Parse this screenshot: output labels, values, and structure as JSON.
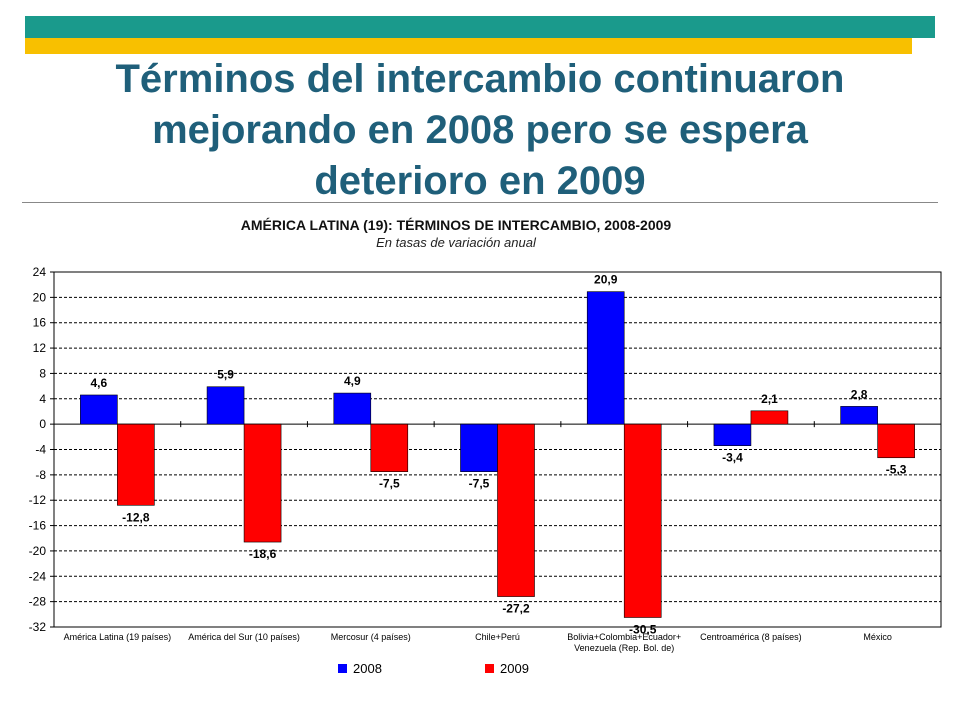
{
  "slide": {
    "title": "Términos del intercambio continuaron mejorando en 2008 pero se espera deterioro en 2009"
  },
  "chart_data": {
    "type": "bar",
    "title": "AMÉRICA LATINA (19): TÉRMINOS DE INTERCAMBIO, 2008-2009",
    "subtitle": "En tasas de variación anual",
    "categories": [
      [
        "América Latina (19 países)"
      ],
      [
        "América del Sur (10 países)"
      ],
      [
        "Mercosur (4 países)"
      ],
      [
        "Chile+Perú"
      ],
      [
        "Bolivia+Colombia+Ecuador+",
        "Venezuela (Rep. Bol. de)"
      ],
      [
        "Centroamérica (8 países)"
      ],
      [
        "México"
      ]
    ],
    "series": [
      {
        "name": "2008",
        "color": "#0000ff",
        "values": [
          4.6,
          5.9,
          4.9,
          -7.5,
          20.9,
          -3.4,
          2.8
        ],
        "labels": [
          "4,6",
          "5,9",
          "4,9",
          "-7,5",
          "20,9",
          "-3,4",
          "2,8"
        ]
      },
      {
        "name": "2009",
        "color": "#ff0000",
        "values": [
          -12.8,
          -18.6,
          -7.5,
          -27.2,
          -30.5,
          2.1,
          -5.3
        ],
        "labels": [
          "-12,8",
          "-18,6",
          "-7,5",
          "-27,2",
          "-30,5",
          "2,1",
          "-5,3"
        ]
      }
    ],
    "ylim": [
      -32,
      24
    ],
    "yticks": [
      24,
      20,
      16,
      12,
      8,
      4,
      0,
      -4,
      -8,
      -12,
      -16,
      -20,
      -24,
      -28,
      -32
    ],
    "grid": true,
    "legend_position": "bottom"
  }
}
